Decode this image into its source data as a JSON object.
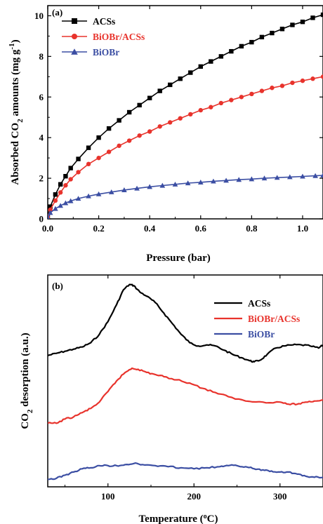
{
  "chart_data": [
    {
      "type": "line",
      "panel_label": "(a)",
      "xlabel": "Pressure (bar)",
      "ylabel_parts": [
        "Absorbed CO",
        "2",
        " amounts (mg g",
        "-1",
        ")"
      ],
      "xlim": [
        0,
        1.08
      ],
      "ylim": [
        0,
        10.5
      ],
      "xticks": [
        0.0,
        0.2,
        0.4,
        0.6,
        0.8,
        1.0
      ],
      "xtick_labels": [
        "0.0",
        "0.2",
        "0.4",
        "0.6",
        "0.8",
        "1.0"
      ],
      "yticks": [
        0,
        2,
        4,
        6,
        8,
        10
      ],
      "ytick_labels": [
        "0",
        "2",
        "4",
        "6",
        "8",
        "10"
      ],
      "legend_position": "top-left",
      "series": [
        {
          "name": "ACSs",
          "color": "#000000",
          "marker": "square",
          "x": [
            0.0,
            0.01,
            0.03,
            0.05,
            0.07,
            0.09,
            0.12,
            0.16,
            0.2,
            0.24,
            0.28,
            0.32,
            0.36,
            0.4,
            0.44,
            0.48,
            0.52,
            0.56,
            0.6,
            0.64,
            0.68,
            0.72,
            0.76,
            0.8,
            0.84,
            0.88,
            0.92,
            0.96,
            1.0,
            1.04,
            1.08
          ],
          "y": [
            0.15,
            0.6,
            1.2,
            1.7,
            2.1,
            2.5,
            2.95,
            3.5,
            4.0,
            4.45,
            4.85,
            5.25,
            5.6,
            5.95,
            6.3,
            6.6,
            6.9,
            7.2,
            7.5,
            7.75,
            8.0,
            8.25,
            8.5,
            8.7,
            8.95,
            9.15,
            9.35,
            9.55,
            9.7,
            9.9,
            10.05
          ]
        },
        {
          "name": "BiOBr/ACSs",
          "color": "#e8332c",
          "marker": "circle",
          "x": [
            0.0,
            0.01,
            0.03,
            0.05,
            0.07,
            0.09,
            0.12,
            0.16,
            0.2,
            0.24,
            0.28,
            0.32,
            0.36,
            0.4,
            0.44,
            0.48,
            0.52,
            0.56,
            0.6,
            0.64,
            0.68,
            0.72,
            0.76,
            0.8,
            0.84,
            0.88,
            0.92,
            0.96,
            1.0,
            1.04,
            1.08
          ],
          "y": [
            0.1,
            0.45,
            0.9,
            1.3,
            1.65,
            1.95,
            2.3,
            2.7,
            3.0,
            3.3,
            3.6,
            3.85,
            4.1,
            4.3,
            4.55,
            4.75,
            4.95,
            5.15,
            5.35,
            5.5,
            5.7,
            5.85,
            6.0,
            6.15,
            6.3,
            6.45,
            6.55,
            6.7,
            6.8,
            6.9,
            7.0
          ]
        },
        {
          "name": "BiOBr",
          "color": "#3b4ea3",
          "marker": "triangle",
          "x": [
            0.0,
            0.01,
            0.03,
            0.05,
            0.07,
            0.09,
            0.12,
            0.16,
            0.2,
            0.25,
            0.3,
            0.35,
            0.4,
            0.45,
            0.5,
            0.55,
            0.6,
            0.65,
            0.7,
            0.75,
            0.8,
            0.85,
            0.9,
            0.95,
            1.0,
            1.05,
            1.08
          ],
          "y": [
            0.05,
            0.3,
            0.5,
            0.65,
            0.78,
            0.88,
            1.0,
            1.12,
            1.22,
            1.32,
            1.42,
            1.5,
            1.58,
            1.64,
            1.7,
            1.76,
            1.8,
            1.85,
            1.89,
            1.93,
            1.96,
            2.0,
            2.03,
            2.06,
            2.09,
            2.12,
            2.14
          ]
        }
      ]
    },
    {
      "type": "line",
      "panel_label": "(b)",
      "xlabel": "Temperature (°C)",
      "ylabel_parts": [
        "CO",
        "2",
        " desorption (a.u.)"
      ],
      "xlim": [
        30,
        350
      ],
      "ylim": [
        0,
        1
      ],
      "xticks": [
        100,
        200,
        300
      ],
      "xtick_labels": [
        "100",
        "200",
        "300"
      ],
      "yticks": [],
      "legend_position": "top-right",
      "series": [
        {
          "name": "ACSs",
          "color": "#000000",
          "x": [
            30,
            40,
            50,
            60,
            70,
            80,
            90,
            100,
            110,
            118,
            125,
            130,
            137,
            145,
            155,
            165,
            175,
            185,
            195,
            205,
            215,
            225,
            235,
            245,
            255,
            265,
            270,
            278,
            285,
            295,
            305,
            315,
            325,
            335,
            345,
            350
          ],
          "y": [
            0.62,
            0.63,
            0.64,
            0.65,
            0.66,
            0.68,
            0.72,
            0.78,
            0.86,
            0.93,
            0.955,
            0.95,
            0.92,
            0.9,
            0.87,
            0.82,
            0.77,
            0.72,
            0.68,
            0.665,
            0.67,
            0.665,
            0.645,
            0.625,
            0.61,
            0.595,
            0.59,
            0.6,
            0.625,
            0.655,
            0.665,
            0.67,
            0.67,
            0.665,
            0.655,
            0.67
          ]
        },
        {
          "name": "BiOBr/ACSs",
          "color": "#e8332c",
          "x": [
            30,
            40,
            50,
            60,
            70,
            80,
            90,
            100,
            110,
            120,
            128,
            135,
            145,
            155,
            165,
            180,
            195,
            210,
            225,
            240,
            260,
            280,
            300,
            310,
            320,
            330,
            340,
            350
          ],
          "y": [
            0.3,
            0.3,
            0.32,
            0.33,
            0.35,
            0.37,
            0.4,
            0.45,
            0.5,
            0.54,
            0.56,
            0.555,
            0.54,
            0.53,
            0.52,
            0.505,
            0.49,
            0.465,
            0.445,
            0.425,
            0.405,
            0.4,
            0.4,
            0.39,
            0.39,
            0.4,
            0.405,
            0.41
          ]
        },
        {
          "name": "BiOBr",
          "color": "#3b4ea3",
          "x": [
            30,
            40,
            50,
            60,
            70,
            80,
            90,
            100,
            110,
            120,
            130,
            140,
            155,
            170,
            185,
            200,
            215,
            230,
            240,
            250,
            260,
            270,
            280,
            290,
            300,
            310,
            320,
            330,
            340,
            350
          ],
          "y": [
            0.035,
            0.04,
            0.055,
            0.07,
            0.085,
            0.09,
            0.1,
            0.1,
            0.1,
            0.105,
            0.11,
            0.105,
            0.1,
            0.095,
            0.09,
            0.085,
            0.09,
            0.095,
            0.1,
            0.1,
            0.095,
            0.085,
            0.08,
            0.075,
            0.07,
            0.07,
            0.06,
            0.05,
            0.045,
            0.045
          ]
        }
      ]
    }
  ]
}
